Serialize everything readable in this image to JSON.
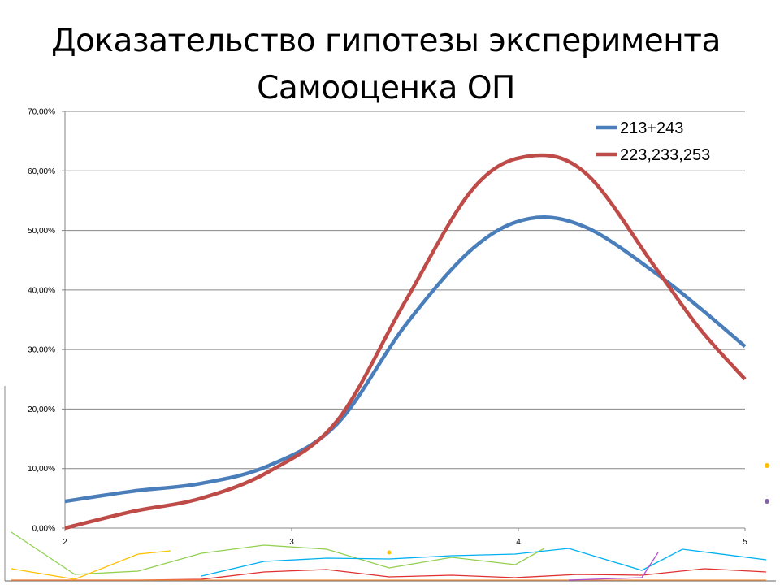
{
  "slide": {
    "title_line1": "Доказательство гипотезы эксперимента",
    "title_line2": "Самооценка ОП"
  },
  "chart_data": {
    "type": "line",
    "smooth": true,
    "x": [
      2,
      2.3,
      2.6,
      2.9,
      3.2,
      3.5,
      3.8,
      4.05,
      4.3,
      4.6,
      4.8,
      5
    ],
    "xlim": [
      2,
      5
    ],
    "ylim": [
      0,
      0.7
    ],
    "xticks": [
      "2",
      "3",
      "4",
      "5"
    ],
    "yticks": [
      "0,00%",
      "10,00%",
      "20,00%",
      "30,00%",
      "40,00%",
      "50,00%",
      "60,00%",
      "70,00%"
    ],
    "grid": "horizontal",
    "legend": "top-right",
    "series": [
      {
        "name": "213+243",
        "color": "#4a7ebb",
        "values": [
          0.045,
          0.062,
          0.075,
          0.105,
          0.175,
          0.34,
          0.47,
          0.52,
          0.505,
          0.43,
          0.37,
          0.305
        ]
      },
      {
        "name": "223,233,253",
        "color": "#be4b48",
        "values": [
          0.0,
          0.028,
          0.05,
          0.095,
          0.18,
          0.38,
          0.57,
          0.625,
          0.595,
          0.44,
          0.335,
          0.25
        ]
      }
    ]
  }
}
